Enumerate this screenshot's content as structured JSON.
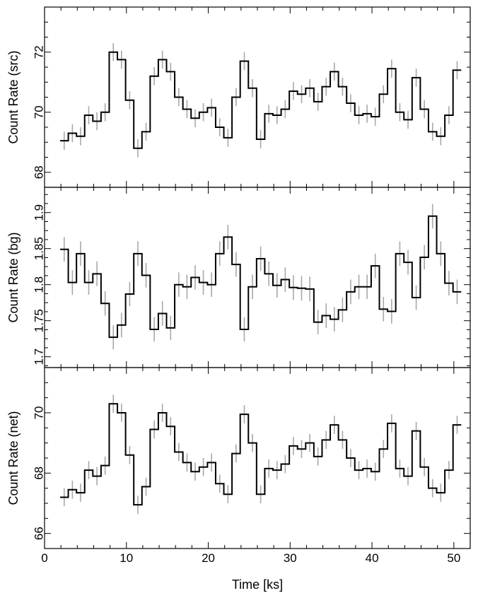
{
  "chart_data": {
    "type": "line",
    "style": "step-histogram with error bars",
    "colors": {
      "line": "#000000",
      "error_bars": "#a8a8a8",
      "frame": "#000000"
    },
    "xlabel": "Time [ks]",
    "xlim": [
      0,
      52
    ],
    "x_ticks": [
      0,
      10,
      20,
      30,
      40,
      50
    ],
    "bin_width_ks": 1,
    "x": [
      2.4,
      3.4,
      4.4,
      5.4,
      6.4,
      7.4,
      8.4,
      9.4,
      10.4,
      11.4,
      12.4,
      13.4,
      14.4,
      15.4,
      16.4,
      17.4,
      18.4,
      19.4,
      20.4,
      21.4,
      22.4,
      23.4,
      24.4,
      25.4,
      26.4,
      27.4,
      28.4,
      29.4,
      30.4,
      31.4,
      32.4,
      33.4,
      34.4,
      35.4,
      36.4,
      37.4,
      38.4,
      39.4,
      40.4,
      41.4,
      42.4,
      43.4,
      44.4,
      45.4,
      46.4,
      47.4,
      48.4,
      49.4,
      50.4
    ],
    "panels": [
      {
        "ylabel": "Count Rate (src)",
        "ylim": [
          67.5,
          73.5
        ],
        "y_ticks": [
          68,
          70,
          72
        ],
        "y_tick_labels": [
          "68",
          "70",
          "72"
        ],
        "minor_tick_step": 0.5,
        "error": 0.3,
        "values": [
          69.05,
          69.3,
          69.2,
          69.9,
          69.7,
          70.0,
          72.0,
          71.75,
          70.4,
          68.8,
          69.35,
          71.2,
          71.75,
          71.35,
          70.5,
          70.1,
          69.8,
          70.0,
          70.15,
          69.5,
          69.15,
          70.5,
          71.7,
          70.8,
          69.1,
          69.95,
          69.9,
          70.1,
          70.7,
          70.6,
          70.8,
          70.35,
          70.85,
          71.35,
          70.85,
          70.3,
          69.9,
          69.95,
          69.85,
          70.6,
          71.45,
          70.0,
          69.75,
          71.15,
          70.1,
          69.35,
          69.2,
          69.9,
          71.4
        ]
      },
      {
        "ylabel": "Count Rate (bg)",
        "ylim": [
          1.685,
          1.935
        ],
        "y_ticks": [
          1.7,
          1.75,
          1.8,
          1.85,
          1.9
        ],
        "y_tick_labels": [
          "1.7",
          "1.75",
          "1.8",
          "1.85",
          "1.9"
        ],
        "minor_tick_step": 0.0125,
        "error": 0.017,
        "values": [
          1.849,
          1.803,
          1.843,
          1.803,
          1.815,
          1.774,
          1.727,
          1.744,
          1.787,
          1.843,
          1.813,
          1.738,
          1.76,
          1.74,
          1.8,
          1.797,
          1.81,
          1.803,
          1.8,
          1.843,
          1.866,
          1.828,
          1.738,
          1.797,
          1.836,
          1.815,
          1.799,
          1.807,
          1.796,
          1.795,
          1.794,
          1.748,
          1.757,
          1.752,
          1.765,
          1.79,
          1.797,
          1.797,
          1.826,
          1.766,
          1.763,
          1.843,
          1.831,
          1.782,
          1.838,
          1.895,
          1.843,
          1.802,
          1.79
        ]
      },
      {
        "ylabel": "Count Rate (net)",
        "ylim": [
          65.5,
          71.5
        ],
        "y_ticks": [
          66,
          68,
          70
        ],
        "y_tick_labels": [
          "66",
          "68",
          "70"
        ],
        "minor_tick_step": 0.5,
        "error": 0.3,
        "values": [
          67.2,
          67.45,
          67.35,
          68.1,
          67.9,
          68.25,
          70.3,
          70.0,
          68.6,
          66.95,
          67.55,
          69.45,
          70.0,
          69.55,
          68.7,
          68.35,
          68.05,
          68.2,
          68.35,
          67.65,
          67.3,
          68.65,
          69.95,
          69.0,
          67.3,
          68.15,
          68.1,
          68.3,
          68.9,
          68.8,
          69.0,
          68.55,
          69.1,
          69.6,
          69.1,
          68.5,
          68.1,
          68.15,
          68.05,
          68.8,
          69.65,
          68.15,
          67.9,
          69.4,
          68.2,
          67.5,
          67.35,
          68.1,
          69.6
        ]
      }
    ]
  }
}
